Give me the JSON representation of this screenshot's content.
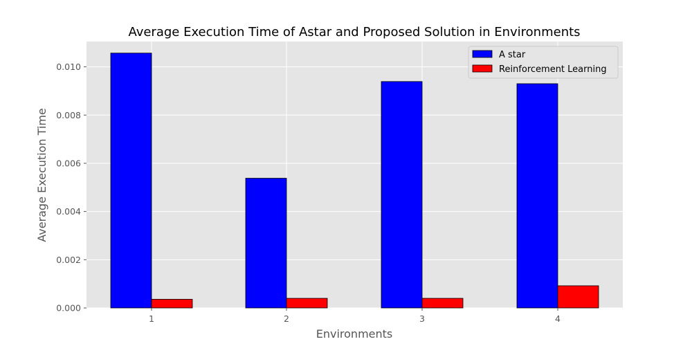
{
  "chart_data": {
    "type": "bar",
    "title": "Average Execution Time of Astar and Proposed Solution in Environments",
    "xlabel": "Environments",
    "ylabel": "Average Execution Time",
    "categories": [
      "1",
      "2",
      "3",
      "4"
    ],
    "series": [
      {
        "name": "A star",
        "color": "#0000ff",
        "values": [
          0.01057,
          0.00538,
          0.00939,
          0.0093
        ]
      },
      {
        "name": "Reinforcement Learning",
        "color": "#ff0000",
        "values": [
          0.00036,
          0.0004,
          0.0004,
          0.00092
        ]
      }
    ],
    "ylim": [
      0,
      0.01105
    ],
    "yticks": [
      "0.000",
      "0.002",
      "0.004",
      "0.006",
      "0.008",
      "0.010"
    ],
    "ytick_values": [
      0,
      0.002,
      0.004,
      0.006,
      0.008,
      0.01
    ],
    "grid": true,
    "legend_position": "top-right",
    "background_color": "#e5e5e5"
  }
}
